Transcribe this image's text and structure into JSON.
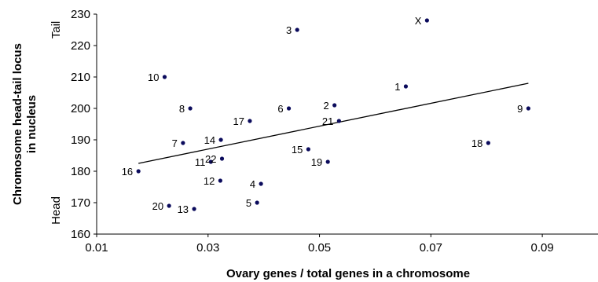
{
  "chart_data": {
    "type": "scatter",
    "xlabel": "Ovary genes / total genes in a chromosome",
    "ylabel": "Chromosome head-tail locus in nucleus",
    "ylabel_line1": "Chromosome head-tail locus",
    "ylabel_line2": "in nucleus",
    "y_annotations": {
      "top": "Tail",
      "bottom": "Head"
    },
    "xlim": [
      0.01,
      0.1
    ],
    "ylim": [
      160,
      230
    ],
    "xticks": [
      "0.01",
      "0.03",
      "0.05",
      "0.07",
      "0.09"
    ],
    "yticks": [
      "160",
      "170",
      "180",
      "190",
      "200",
      "210",
      "220",
      "230"
    ],
    "grid": false,
    "legend": "none",
    "marker_color": "#0b0b5c",
    "trendline": {
      "type": "linear",
      "x": [
        0.0175,
        0.0875
      ],
      "y": [
        182.5,
        208
      ]
    },
    "points": [
      {
        "label": "1",
        "x": 0.0655,
        "y": 207,
        "anchor": "left"
      },
      {
        "label": "2",
        "x": 0.0527,
        "y": 201,
        "anchor": "left"
      },
      {
        "label": "3",
        "x": 0.046,
        "y": 225,
        "anchor": "left"
      },
      {
        "label": "4",
        "x": 0.0395,
        "y": 176,
        "anchor": "left"
      },
      {
        "label": "5",
        "x": 0.0388,
        "y": 170,
        "anchor": "left"
      },
      {
        "label": "6",
        "x": 0.0445,
        "y": 200,
        "anchor": "left"
      },
      {
        "label": "7",
        "x": 0.0255,
        "y": 189,
        "anchor": "left"
      },
      {
        "label": "8",
        "x": 0.0268,
        "y": 200,
        "anchor": "left"
      },
      {
        "label": "9",
        "x": 0.0875,
        "y": 200,
        "anchor": "left"
      },
      {
        "label": "10",
        "x": 0.0222,
        "y": 210,
        "anchor": "left"
      },
      {
        "label": "11",
        "x": 0.0305,
        "y": 183,
        "anchor": "left"
      },
      {
        "label": "12",
        "x": 0.0322,
        "y": 177,
        "anchor": "left"
      },
      {
        "label": "13",
        "x": 0.0275,
        "y": 168,
        "anchor": "left"
      },
      {
        "label": "14",
        "x": 0.0323,
        "y": 190,
        "anchor": "left"
      },
      {
        "label": "15",
        "x": 0.048,
        "y": 187,
        "anchor": "left"
      },
      {
        "label": "16",
        "x": 0.0175,
        "y": 180,
        "anchor": "left"
      },
      {
        "label": "17",
        "x": 0.0375,
        "y": 196,
        "anchor": "left"
      },
      {
        "label": "18",
        "x": 0.0803,
        "y": 189,
        "anchor": "left"
      },
      {
        "label": "19",
        "x": 0.0515,
        "y": 183,
        "anchor": "left"
      },
      {
        "label": "20",
        "x": 0.023,
        "y": 169,
        "anchor": "left"
      },
      {
        "label": "21",
        "x": 0.0535,
        "y": 196,
        "anchor": "left"
      },
      {
        "label": "22",
        "x": 0.0325,
        "y": 184,
        "anchor": "left"
      },
      {
        "label": "X",
        "x": 0.0693,
        "y": 228,
        "anchor": "left"
      }
    ]
  }
}
